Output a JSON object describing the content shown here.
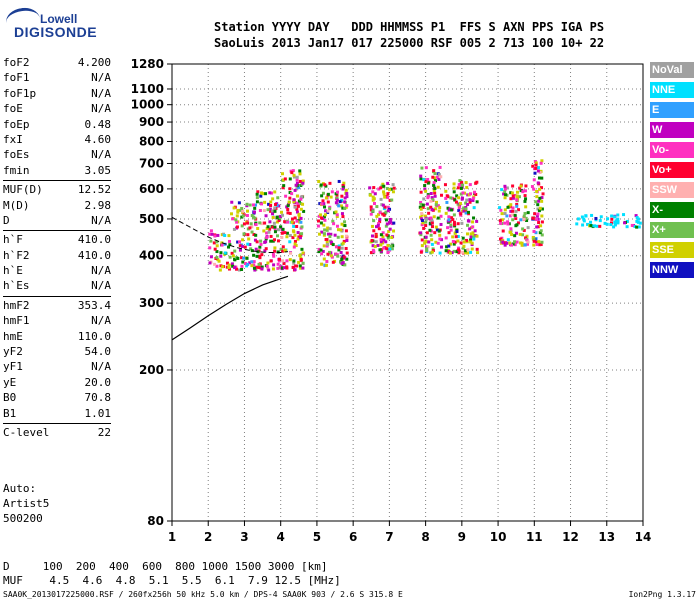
{
  "logo": {
    "top": "Lowell",
    "bottom": "DIGISONDE"
  },
  "header": {
    "row1": "Station YYYY DAY   DDD HHMMSS P1  FFS S AXN PPS IGA PS",
    "row2": "SaoLuis 2013 Jan17 017 225000 RSF 005 2 713 100 10+ 22"
  },
  "params": [
    [
      [
        "foF2",
        "4.200"
      ],
      [
        "foF1",
        "N/A"
      ],
      [
        "foF1p",
        "N/A"
      ],
      [
        "foE",
        "N/A"
      ],
      [
        "foEp",
        "0.48"
      ],
      [
        "fxI",
        "4.60"
      ],
      [
        "foEs",
        "N/A"
      ],
      [
        "fmin",
        "3.05"
      ]
    ],
    [
      [
        "MUF(D)",
        "12.52"
      ],
      [
        "M(D)",
        "2.98"
      ],
      [
        "D",
        "N/A"
      ]
    ],
    [
      [
        "h`F",
        "410.0"
      ],
      [
        "h`F2",
        "410.0"
      ],
      [
        "h`E",
        "N/A"
      ],
      [
        "h`Es",
        "N/A"
      ]
    ],
    [
      [
        "hmF2",
        "353.4"
      ],
      [
        "hmF1",
        "N/A"
      ],
      [
        "hmE",
        "110.0"
      ],
      [
        "yF2",
        "54.0"
      ],
      [
        "yF1",
        "N/A"
      ],
      [
        "yE",
        "20.0"
      ],
      [
        "B0",
        "70.8"
      ],
      [
        "B1",
        "1.01"
      ]
    ],
    [
      [
        "C-level",
        "22"
      ]
    ]
  ],
  "auto": [
    "Auto:",
    "Artist5",
    "500200"
  ],
  "legend": [
    {
      "label": "NoVal",
      "color": "#a0a0a0"
    },
    {
      "label": "NNE",
      "color": "#00e0ff"
    },
    {
      "label": "E",
      "color": "#30a0ff"
    },
    {
      "label": "W",
      "color": "#c000c0"
    },
    {
      "label": "Vo-",
      "color": "#ff30c0"
    },
    {
      "label": "Vo+",
      "color": "#ff0030"
    },
    {
      "label": "SSW",
      "color": "#ffb0b0"
    },
    {
      "label": "X-",
      "color": "#008000"
    },
    {
      "label": "X+",
      "color": "#70c050"
    },
    {
      "label": "SSE",
      "color": "#d0d000"
    },
    {
      "label": "NNW",
      "color": "#1010c0"
    }
  ],
  "footer": {
    "d_row": "D     100  200  400  600  800 1000 1500 3000 [km]",
    "muf_row": "MUF    4.5  4.6  4.8  5.1  5.5  6.1  7.9 12.5 [MHz]",
    "caption": "SAA0K_2013017225000.RSF / 260fx256h 50 kHz 5.0 km / DPS-4 SAA0K 903 / 2.6 S 315.8 E",
    "version": "Ion2Png 1.3.17"
  },
  "chart_data": {
    "type": "scatter",
    "xlim": [
      1,
      14
    ],
    "ylim": [
      80,
      1280
    ],
    "x_ticks": [
      1,
      2,
      3,
      4,
      5,
      6,
      7,
      8,
      9,
      10,
      11,
      12,
      13,
      14
    ],
    "y_ticks": [
      80,
      200,
      300,
      400,
      500,
      600,
      700,
      800,
      900,
      1000,
      1100,
      1280
    ],
    "y_scale": "log",
    "grid": true,
    "profile_curve": {
      "x": [
        1.0,
        1.5,
        2.0,
        2.5,
        3.0,
        3.5,
        4.0,
        4.2
      ],
      "y": [
        240,
        258,
        278,
        298,
        318,
        335,
        348,
        353
      ]
    },
    "trace_curve": {
      "x": [
        1.0,
        1.6,
        2.0,
        2.4,
        2.8,
        3.2,
        3.6,
        4.0,
        4.2
      ],
      "y": [
        505,
        470,
        448,
        432,
        420,
        412,
        408,
        408,
        410
      ]
    },
    "echo_clusters": [
      {
        "x": [
          2.0,
          2.6
        ],
        "y": [
          370,
          470
        ]
      },
      {
        "x": [
          2.6,
          3.3
        ],
        "y": [
          370,
          560
        ]
      },
      {
        "x": [
          3.3,
          4.0
        ],
        "y": [
          370,
          600
        ]
      },
      {
        "x": [
          4.0,
          4.6
        ],
        "y": [
          370,
          680
        ]
      },
      {
        "x": [
          5.0,
          5.8
        ],
        "y": [
          380,
          640
        ]
      },
      {
        "x": [
          6.4,
          7.1
        ],
        "y": [
          410,
          630
        ]
      },
      {
        "x": [
          7.8,
          8.4
        ],
        "y": [
          410,
          690
        ]
      },
      {
        "x": [
          8.5,
          9.4
        ],
        "y": [
          410,
          640
        ]
      },
      {
        "x": [
          10.0,
          10.8
        ],
        "y": [
          430,
          620
        ]
      },
      {
        "x": [
          10.9,
          11.2
        ],
        "y": [
          430,
          720
        ]
      },
      {
        "x": [
          12.1,
          13.9
        ],
        "y": [
          480,
          520
        ]
      }
    ]
  }
}
